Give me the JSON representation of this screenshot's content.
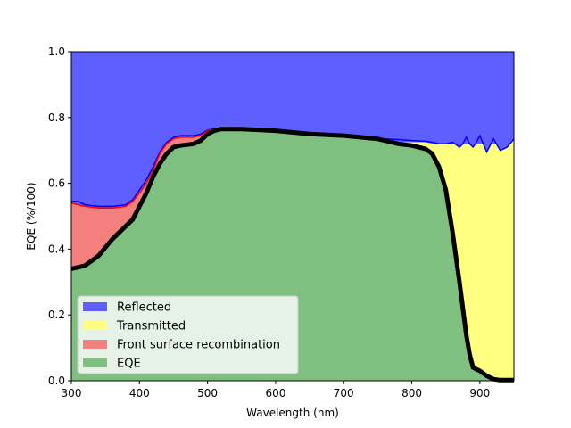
{
  "chart_data": {
    "type": "area",
    "xlabel": "Wavelength (nm)",
    "ylabel": "EQE (%/100)",
    "xlim": [
      300,
      950
    ],
    "ylim": [
      0,
      1
    ],
    "xticks": [
      300,
      400,
      500,
      600,
      700,
      800,
      900
    ],
    "yticks": [
      0.0,
      0.2,
      0.4,
      0.6,
      0.8,
      1.0
    ],
    "xtick_labels": [
      "300",
      "400",
      "500",
      "600",
      "700",
      "800",
      "900"
    ],
    "ytick_labels": [
      "0.0",
      "0.2",
      "0.4",
      "0.6",
      "0.8",
      "1.0"
    ],
    "legend_position": "lower-left",
    "grid": false,
    "x": [
      300,
      310,
      320,
      340,
      360,
      380,
      390,
      400,
      410,
      420,
      430,
      440,
      450,
      460,
      480,
      490,
      500,
      510,
      520,
      550,
      600,
      650,
      700,
      750,
      760,
      780,
      800,
      820,
      830,
      840,
      850,
      860,
      870,
      875,
      880,
      885,
      890,
      895,
      900,
      910,
      920,
      930,
      940,
      950
    ],
    "series": [
      {
        "name": "EQE",
        "color": "#7fbf7f",
        "edge_color": "#000000",
        "values": [
          0.34,
          0.345,
          0.35,
          0.38,
          0.43,
          0.47,
          0.49,
          0.53,
          0.57,
          0.62,
          0.66,
          0.69,
          0.71,
          0.715,
          0.72,
          0.73,
          0.75,
          0.76,
          0.765,
          0.765,
          0.76,
          0.75,
          0.745,
          0.735,
          0.73,
          0.72,
          0.715,
          0.705,
          0.69,
          0.65,
          0.58,
          0.45,
          0.3,
          0.22,
          0.14,
          0.08,
          0.04,
          0.035,
          0.03,
          0.015,
          0.005,
          0.002,
          0.002,
          0.002
        ]
      },
      {
        "name": "Front surface recombination",
        "color": "#f47f7f",
        "edge_color": "#ff0000",
        "values": [
          0.54,
          0.535,
          0.53,
          0.525,
          0.525,
          0.53,
          0.545,
          0.57,
          0.6,
          0.64,
          0.69,
          0.72,
          0.735,
          0.74,
          0.74,
          0.745,
          0.76,
          0.765,
          0.765,
          0.765,
          0.76,
          0.75,
          0.745,
          0.735,
          0.73,
          0.72,
          0.715,
          0.705,
          0.69,
          0.65,
          0.58,
          0.45,
          0.3,
          0.22,
          0.14,
          0.08,
          0.04,
          0.035,
          0.03,
          0.015,
          0.005,
          0.002,
          0.002,
          0.002
        ]
      },
      {
        "name": "Transmitted",
        "color": "#ffff7f",
        "edge_color": "#ffff7f",
        "values": [
          0.54,
          0.535,
          0.53,
          0.525,
          0.525,
          0.53,
          0.545,
          0.57,
          0.6,
          0.64,
          0.69,
          0.72,
          0.735,
          0.74,
          0.74,
          0.745,
          0.76,
          0.765,
          0.765,
          0.765,
          0.76,
          0.75,
          0.745,
          0.735,
          0.73,
          0.725,
          0.725,
          0.725,
          0.72,
          0.72,
          0.72,
          0.72,
          0.72,
          0.72,
          0.72,
          0.72,
          0.72,
          0.72,
          0.72,
          0.72,
          0.72,
          0.72,
          0.72,
          0.73
        ]
      },
      {
        "name": "Reflected",
        "color": "#5f5fff",
        "edge_color": "#0000ff",
        "values": [
          0.545,
          0.545,
          0.535,
          0.53,
          0.53,
          0.535,
          0.55,
          0.58,
          0.61,
          0.65,
          0.695,
          0.725,
          0.74,
          0.745,
          0.745,
          0.75,
          0.762,
          0.766,
          0.766,
          0.766,
          0.761,
          0.752,
          0.746,
          0.737,
          0.735,
          0.733,
          0.73,
          0.728,
          0.725,
          0.72,
          0.72,
          0.725,
          0.71,
          0.72,
          0.74,
          0.72,
          0.71,
          0.725,
          0.745,
          0.695,
          0.735,
          0.7,
          0.71,
          0.735
        ],
        "upper": 1.0
      }
    ],
    "legend": [
      "Reflected",
      "Transmitted",
      "Front surface recombination",
      "EQE"
    ]
  }
}
